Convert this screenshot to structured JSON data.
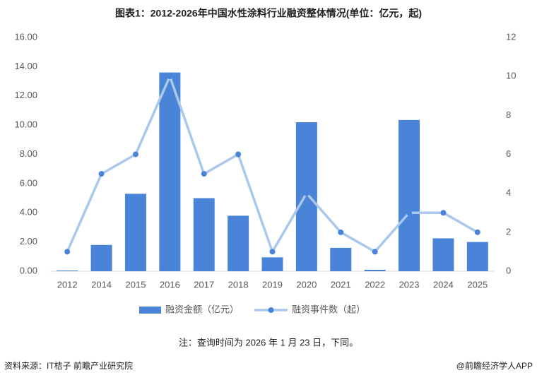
{
  "chart_data": {
    "type": "bar",
    "title": "图表1：2012-2026年中国水性涂料行业融资整体情况(单位：亿元，起)",
    "categories": [
      "2012",
      "2014",
      "2015",
      "2016",
      "2017",
      "2018",
      "2019",
      "2020",
      "2021",
      "2022",
      "2023",
      "2024",
      "2025"
    ],
    "series": [
      {
        "name": "融资金额（亿元）",
        "type": "bar",
        "color": "#4a84d8",
        "values": [
          0.05,
          1.8,
          5.3,
          13.6,
          5.0,
          3.8,
          0.95,
          10.2,
          1.6,
          0.1,
          10.35,
          2.25,
          2.0
        ]
      },
      {
        "name": "融资事件数（起）",
        "type": "line",
        "axis": "y2",
        "color": "#a9c8ec",
        "marker_color": "#4a84d8",
        "values": [
          1,
          5,
          6,
          10,
          5,
          6,
          1,
          4,
          2,
          1,
          3,
          3,
          2
        ]
      }
    ],
    "ylim": [
      0,
      16
    ],
    "yticks": [
      {
        "value": 0,
        "label": "0.00"
      },
      {
        "value": 2,
        "label": "2.00"
      },
      {
        "value": 4,
        "label": "4.00"
      },
      {
        "value": 6,
        "label": "6.00"
      },
      {
        "value": 8,
        "label": "8.00"
      },
      {
        "value": 10,
        "label": "10.00"
      },
      {
        "value": 12,
        "label": "12.00"
      },
      {
        "value": 14,
        "label": "14.00"
      },
      {
        "value": 16,
        "label": "16.00"
      }
    ],
    "y2lim": [
      0,
      12
    ],
    "y2ticks": [
      0,
      2,
      4,
      6,
      8,
      10,
      12
    ],
    "grid": false,
    "legend": "bottom",
    "note": "注：查询时间为 2026 年 1 月 23 日，下同。",
    "source": "资料来源：IT桔子 前瞻产业研究院",
    "brand": "@前瞻经济学人APP"
  }
}
